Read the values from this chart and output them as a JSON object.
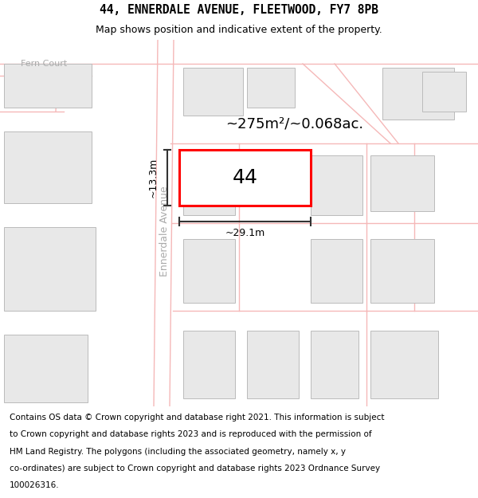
{
  "title": "44, ENNERDALE AVENUE, FLEETWOOD, FY7 8PB",
  "subtitle": "Map shows position and indicative extent of the property.",
  "footer_lines": [
    "Contains OS data © Crown copyright and database right 2021. This information is subject",
    "to Crown copyright and database rights 2023 and is reproduced with the permission of",
    "HM Land Registry. The polygons (including the associated geometry, namely x, y",
    "co-ordinates) are subject to Crown copyright and database rights 2023 Ordnance Survey",
    "100026316."
  ],
  "area_label": "~275m²/~0.068ac.",
  "number_label": "44",
  "width_label": "~29.1m",
  "height_label": "~13.3m",
  "bg_color": "#ffffff",
  "map_bg": "#ffffff",
  "building_fill": "#e8e8e8",
  "building_outline": "#bbbbbb",
  "highlight_fill": "#ffffff",
  "highlight_outline": "#ff0000",
  "road_lines": "#f5b8b8",
  "street_label_color": "#aaaaaa",
  "dim_line_color": "#333333",
  "title_fontsize": 10.5,
  "subtitle_fontsize": 9,
  "footer_fontsize": 7.5,
  "area_fontsize": 13,
  "number_fontsize": 18,
  "dim_fontsize": 9,
  "street_fontsize": 9
}
